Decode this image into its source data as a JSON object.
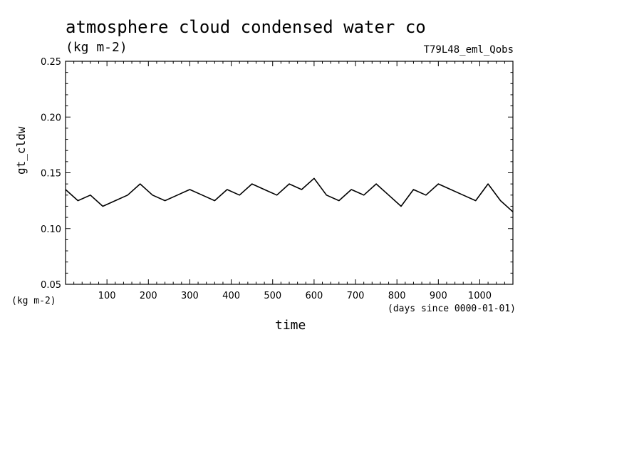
{
  "chart_data": {
    "type": "line",
    "title": "atmosphere cloud condensed water co",
    "units": "(kg m-2)",
    "run_label": "T79L48_eml_Qobs",
    "ylabel": "gt_cldw",
    "ylabel_units": "(kg m-2)",
    "xlabel": "time",
    "xlabel_units": "(days since 0000-01-01)",
    "xlim": [
      0,
      1080
    ],
    "ylim": [
      0.05,
      0.25
    ],
    "xticks": [
      100,
      200,
      300,
      400,
      500,
      600,
      700,
      800,
      900,
      1000
    ],
    "yticks": [
      "0.05",
      "0.10",
      "0.15",
      "0.20",
      "0.25"
    ],
    "grid": false,
    "series": [
      {
        "color": "#000000",
        "x": [
          0,
          30,
          60,
          90,
          120,
          150,
          180,
          210,
          240,
          270,
          300,
          330,
          360,
          390,
          420,
          450,
          480,
          510,
          540,
          570,
          600,
          630,
          660,
          690,
          720,
          750,
          780,
          810,
          840,
          870,
          900,
          930,
          960,
          990,
          1020,
          1050,
          1080
        ],
        "y": [
          0.135,
          0.125,
          0.13,
          0.12,
          0.125,
          0.13,
          0.14,
          0.13,
          0.125,
          0.13,
          0.135,
          0.13,
          0.125,
          0.135,
          0.13,
          0.14,
          0.135,
          0.13,
          0.14,
          0.135,
          0.145,
          0.13,
          0.125,
          0.135,
          0.13,
          0.14,
          0.13,
          0.12,
          0.135,
          0.13,
          0.14,
          0.135,
          0.13,
          0.125,
          0.14,
          0.125,
          0.115
        ]
      }
    ]
  }
}
